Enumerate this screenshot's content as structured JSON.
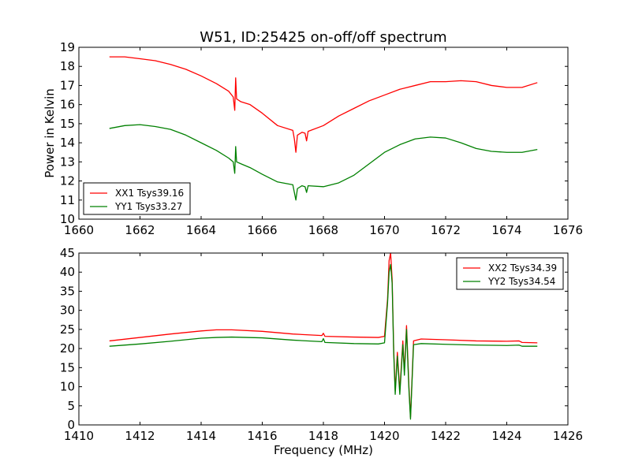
{
  "chart_data": [
    {
      "type": "line",
      "title": "W51, ID:25425 on-off/off spectrum",
      "xlabel": "",
      "ylabel": "Power in Kelvin",
      "xlim": [
        1660,
        1676
      ],
      "ylim": [
        10,
        19
      ],
      "xticks": [
        "1660",
        "1662",
        "1664",
        "1666",
        "1668",
        "1670",
        "1672",
        "1674",
        "1676"
      ],
      "yticks": [
        "10",
        "11",
        "12",
        "13",
        "14",
        "15",
        "16",
        "17",
        "18",
        "19"
      ],
      "grid": false,
      "legend_position": "lower-left",
      "series": [
        {
          "name": "XX1 Tsys39.16",
          "color": "#ff0000",
          "points": [
            [
              1661.0,
              18.5
            ],
            [
              1661.5,
              18.5
            ],
            [
              1662.0,
              18.4
            ],
            [
              1662.5,
              18.3
            ],
            [
              1663.0,
              18.1
            ],
            [
              1663.5,
              17.85
            ],
            [
              1664.0,
              17.5
            ],
            [
              1664.5,
              17.1
            ],
            [
              1664.9,
              16.7
            ],
            [
              1665.05,
              16.4
            ],
            [
              1665.1,
              15.7
            ],
            [
              1665.13,
              17.4
            ],
            [
              1665.16,
              16.3
            ],
            [
              1665.3,
              16.15
            ],
            [
              1665.6,
              16.0
            ],
            [
              1666.0,
              15.55
            ],
            [
              1666.5,
              14.9
            ],
            [
              1667.0,
              14.65
            ],
            [
              1667.05,
              14.2
            ],
            [
              1667.1,
              13.5
            ],
            [
              1667.15,
              14.4
            ],
            [
              1667.3,
              14.55
            ],
            [
              1667.4,
              14.5
            ],
            [
              1667.45,
              14.1
            ],
            [
              1667.5,
              14.6
            ],
            [
              1668.0,
              14.9
            ],
            [
              1668.5,
              15.4
            ],
            [
              1669.0,
              15.8
            ],
            [
              1669.5,
              16.2
            ],
            [
              1670.0,
              16.5
            ],
            [
              1670.5,
              16.8
            ],
            [
              1671.0,
              17.0
            ],
            [
              1671.5,
              17.2
            ],
            [
              1672.0,
              17.2
            ],
            [
              1672.5,
              17.25
            ],
            [
              1673.0,
              17.2
            ],
            [
              1673.5,
              17.0
            ],
            [
              1674.0,
              16.9
            ],
            [
              1674.5,
              16.9
            ],
            [
              1675.0,
              17.15
            ]
          ]
        },
        {
          "name": "YY1 Tsys33.27",
          "color": "#008000",
          "points": [
            [
              1661.0,
              14.75
            ],
            [
              1661.5,
              14.9
            ],
            [
              1662.0,
              14.95
            ],
            [
              1662.5,
              14.85
            ],
            [
              1663.0,
              14.7
            ],
            [
              1663.5,
              14.4
            ],
            [
              1664.0,
              14.0
            ],
            [
              1664.5,
              13.6
            ],
            [
              1664.9,
              13.2
            ],
            [
              1665.05,
              13.0
            ],
            [
              1665.1,
              12.4
            ],
            [
              1665.13,
              13.8
            ],
            [
              1665.16,
              13.0
            ],
            [
              1665.3,
              12.9
            ],
            [
              1665.6,
              12.7
            ],
            [
              1666.0,
              12.35
            ],
            [
              1666.5,
              11.95
            ],
            [
              1667.0,
              11.8
            ],
            [
              1667.05,
              11.4
            ],
            [
              1667.1,
              11.0
            ],
            [
              1667.15,
              11.6
            ],
            [
              1667.3,
              11.75
            ],
            [
              1667.4,
              11.7
            ],
            [
              1667.45,
              11.4
            ],
            [
              1667.5,
              11.75
            ],
            [
              1668.0,
              11.7
            ],
            [
              1668.5,
              11.9
            ],
            [
              1669.0,
              12.3
            ],
            [
              1669.5,
              12.9
            ],
            [
              1670.0,
              13.5
            ],
            [
              1670.5,
              13.9
            ],
            [
              1671.0,
              14.2
            ],
            [
              1671.5,
              14.3
            ],
            [
              1672.0,
              14.25
            ],
            [
              1672.5,
              14.0
            ],
            [
              1673.0,
              13.7
            ],
            [
              1673.5,
              13.55
            ],
            [
              1674.0,
              13.5
            ],
            [
              1674.5,
              13.5
            ],
            [
              1675.0,
              13.65
            ]
          ]
        }
      ]
    },
    {
      "type": "line",
      "title": "",
      "xlabel": "Frequency (MHz)",
      "ylabel": "",
      "xlim": [
        1410,
        1426
      ],
      "ylim": [
        0,
        45
      ],
      "xticks": [
        "1410",
        "1412",
        "1414",
        "1416",
        "1418",
        "1420",
        "1422",
        "1424",
        "1426"
      ],
      "yticks": [
        "0",
        "5",
        "10",
        "15",
        "20",
        "25",
        "30",
        "35",
        "40",
        "45"
      ],
      "grid": false,
      "legend_position": "upper-right",
      "series": [
        {
          "name": "XX2 Tsys34.39",
          "color": "#ff0000",
          "points": [
            [
              1411.0,
              22.0
            ],
            [
              1412.0,
              22.9
            ],
            [
              1413.0,
              23.8
            ],
            [
              1414.0,
              24.6
            ],
            [
              1414.5,
              24.9
            ],
            [
              1415.0,
              24.9
            ],
            [
              1416.0,
              24.5
            ],
            [
              1417.0,
              23.8
            ],
            [
              1417.95,
              23.4
            ],
            [
              1418.0,
              24.0
            ],
            [
              1418.05,
              23.2
            ],
            [
              1419.0,
              23.0
            ],
            [
              1419.8,
              22.9
            ],
            [
              1420.0,
              23.2
            ],
            [
              1420.1,
              33.0
            ],
            [
              1420.15,
              43.0
            ],
            [
              1420.2,
              45.0
            ],
            [
              1420.25,
              38.0
            ],
            [
              1420.3,
              20.0
            ],
            [
              1420.35,
              9.0
            ],
            [
              1420.42,
              19.0
            ],
            [
              1420.5,
              9.0
            ],
            [
              1420.6,
              22.0
            ],
            [
              1420.65,
              14.0
            ],
            [
              1420.72,
              26.0
            ],
            [
              1420.8,
              10.0
            ],
            [
              1420.85,
              2.0
            ],
            [
              1420.95,
              22.0
            ],
            [
              1421.2,
              22.5
            ],
            [
              1422.0,
              22.3
            ],
            [
              1423.0,
              22.0
            ],
            [
              1424.0,
              21.9
            ],
            [
              1424.4,
              22.0
            ],
            [
              1424.5,
              21.6
            ],
            [
              1425.0,
              21.5
            ]
          ]
        },
        {
          "name": "YY2 Tsys34.54",
          "color": "#008000",
          "points": [
            [
              1411.0,
              20.6
            ],
            [
              1412.0,
              21.2
            ],
            [
              1413.0,
              21.9
            ],
            [
              1414.0,
              22.7
            ],
            [
              1414.5,
              22.9
            ],
            [
              1415.0,
              23.0
            ],
            [
              1416.0,
              22.8
            ],
            [
              1417.0,
              22.2
            ],
            [
              1417.95,
              21.8
            ],
            [
              1418.0,
              22.6
            ],
            [
              1418.05,
              21.6
            ],
            [
              1419.0,
              21.3
            ],
            [
              1419.8,
              21.2
            ],
            [
              1420.0,
              21.5
            ],
            [
              1420.1,
              32.0
            ],
            [
              1420.15,
              40.0
            ],
            [
              1420.2,
              42.0
            ],
            [
              1420.25,
              37.0
            ],
            [
              1420.3,
              19.0
            ],
            [
              1420.35,
              8.0
            ],
            [
              1420.42,
              18.0
            ],
            [
              1420.5,
              8.0
            ],
            [
              1420.6,
              21.0
            ],
            [
              1420.65,
              13.0
            ],
            [
              1420.72,
              25.0
            ],
            [
              1420.8,
              9.0
            ],
            [
              1420.85,
              1.5
            ],
            [
              1420.95,
              21.0
            ],
            [
              1421.2,
              21.3
            ],
            [
              1422.0,
              21.1
            ],
            [
              1423.0,
              20.9
            ],
            [
              1424.0,
              20.8
            ],
            [
              1424.4,
              20.9
            ],
            [
              1424.5,
              20.6
            ],
            [
              1425.0,
              20.6
            ]
          ]
        }
      ]
    }
  ]
}
